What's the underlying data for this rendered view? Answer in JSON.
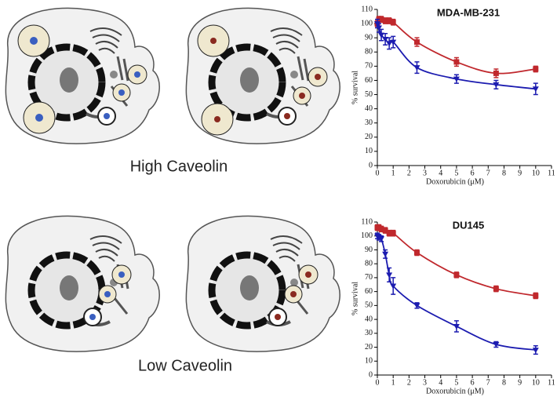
{
  "labels": [
    "High Caveolin",
    "Low Caveolin"
  ],
  "chart_data": [
    {
      "type": "scatter",
      "title": "MDA-MB-231",
      "x_label": "Doxorubicin (μM)",
      "y_label": "% survival",
      "x": [
        0,
        0.1,
        0.25,
        0.5,
        0.75,
        1,
        2.5,
        5,
        7.5,
        10
      ],
      "xlim": [
        0,
        11
      ],
      "xticks": [
        0,
        1,
        2,
        3,
        4,
        5,
        6,
        7,
        8,
        9,
        10,
        11
      ],
      "ylim": [
        0,
        110
      ],
      "yticks": [
        0,
        10,
        20,
        30,
        40,
        50,
        60,
        70,
        80,
        90,
        100,
        110
      ],
      "series": [
        {
          "color": "#c0282d",
          "marker": "square",
          "values": [
            100,
            103,
            103,
            102,
            102,
            101,
            87,
            73,
            65,
            68
          ],
          "errors": [
            2,
            2,
            2,
            2,
            2,
            2,
            3,
            3,
            3,
            2
          ]
        },
        {
          "color": "#1c1cb0",
          "marker": "triangle-down",
          "values": [
            100,
            97,
            92,
            89,
            86,
            87,
            69,
            61,
            57,
            54
          ],
          "errors": [
            3,
            3,
            4,
            4,
            4,
            4,
            4,
            3,
            3,
            4
          ]
        }
      ]
    },
    {
      "type": "scatter",
      "title": "DU145",
      "x_label": "Doxorubicin (μM)",
      "y_label": "% survival",
      "x": [
        0,
        0.1,
        0.25,
        0.5,
        0.75,
        1,
        2.5,
        5,
        7.5,
        10
      ],
      "xlim": [
        0,
        11
      ],
      "xticks": [
        0,
        1,
        2,
        3,
        4,
        5,
        6,
        7,
        8,
        9,
        10,
        11
      ],
      "ylim": [
        0,
        110
      ],
      "yticks": [
        0,
        10,
        20,
        30,
        40,
        50,
        60,
        70,
        80,
        90,
        100,
        110
      ],
      "series": [
        {
          "color": "#c0282d",
          "marker": "square",
          "values": [
            106,
            106,
            105,
            104,
            102,
            102,
            88,
            72,
            62,
            57
          ],
          "errors": [
            2,
            2,
            2,
            2,
            2,
            2,
            2,
            2,
            2,
            2
          ]
        },
        {
          "color": "#1c1cb0",
          "marker": "triangle-down",
          "values": [
            100,
            99,
            98,
            87,
            72,
            64,
            50,
            35,
            22,
            18
          ],
          "errors": [
            2,
            2,
            2,
            3,
            5,
            6,
            2,
            4,
            2,
            3
          ]
        }
      ]
    }
  ]
}
